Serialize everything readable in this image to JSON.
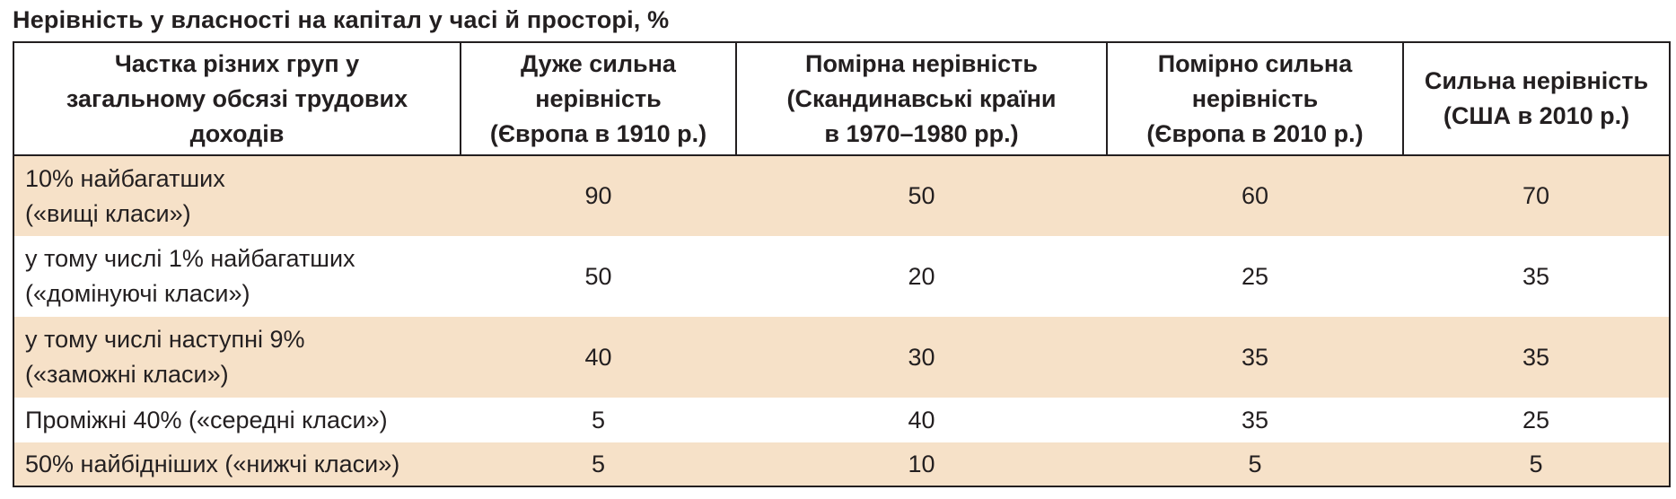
{
  "title": "Нерівність у власності на капітал у часі й просторі, %",
  "table": {
    "headers": [
      [
        "Частка різних груп у",
        "загальному обсязі трудових",
        "доходів"
      ],
      [
        "Дуже сильна",
        "нерівність",
        "(Європа в 1910 р.)"
      ],
      [
        "Помірна нерівність",
        "(Скандинавські країни",
        "в 1970–1980 рр.)"
      ],
      [
        "Помірно сильна",
        "нерівність",
        "(Європа в 2010 р.)"
      ],
      [
        "Сильна нерівність",
        "(США в 2010 р.)"
      ]
    ],
    "rows": [
      {
        "label": [
          "10% найбагатших",
          "(«вищі класи»)"
        ],
        "values": [
          "90",
          "50",
          "60",
          "70"
        ]
      },
      {
        "label": [
          "у тому числі 1% найбагатших",
          "(«домінуючі класи»)"
        ],
        "values": [
          "50",
          "20",
          "25",
          "35"
        ]
      },
      {
        "label": [
          "у тому числі наступні 9%",
          "(«заможні класи»)"
        ],
        "values": [
          "40",
          "30",
          "35",
          "35"
        ]
      },
      {
        "label": [
          "Проміжні 40% («середні класи»)"
        ],
        "values": [
          "5",
          "40",
          "35",
          "25"
        ]
      },
      {
        "label": [
          "50% найбідніших («нижчі класи»)"
        ],
        "values": [
          "5",
          "10",
          "5",
          "5"
        ]
      }
    ]
  },
  "colors": {
    "shaded_row": "#f6e1c8",
    "border": "#231f20"
  }
}
